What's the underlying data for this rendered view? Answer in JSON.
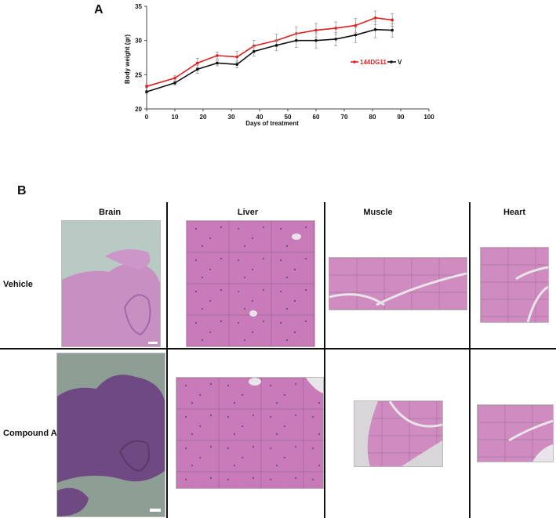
{
  "panels": {
    "a_label": "A",
    "b_label": "B"
  },
  "chart_data": {
    "type": "line",
    "xlabel": "Days of treatment",
    "ylabel": "Body weight (gr)",
    "xlim": [
      0,
      100
    ],
    "ylim": [
      20,
      35
    ],
    "xticks": [
      0,
      10,
      20,
      30,
      40,
      50,
      60,
      70,
      80,
      90,
      100
    ],
    "yticks": [
      20,
      25,
      30,
      35
    ],
    "legend_position": "right",
    "series": [
      {
        "name": "144DG11",
        "color": "#e02020",
        "x": [
          0,
          10,
          18,
          25,
          32,
          38,
          46,
          53,
          60,
          67,
          74,
          81,
          87
        ],
        "y": [
          23.3,
          24.5,
          26.7,
          27.8,
          27.6,
          29.2,
          30.0,
          31.0,
          31.5,
          31.8,
          32.2,
          33.3,
          33.0
        ],
        "err": [
          0.2,
          0.4,
          0.7,
          0.5,
          0.8,
          0.8,
          0.9,
          1.0,
          1.0,
          0.9,
          1.0,
          1.0,
          0.9
        ]
      },
      {
        "name": "V",
        "color": "#111111",
        "x": [
          0,
          10,
          18,
          25,
          32,
          38,
          46,
          53,
          60,
          67,
          74,
          81,
          87
        ],
        "y": [
          22.5,
          23.8,
          25.8,
          26.7,
          26.5,
          28.4,
          29.3,
          30.0,
          30.0,
          30.2,
          30.8,
          31.6,
          31.5
        ],
        "err": [
          0.2,
          0.3,
          0.6,
          0.4,
          0.5,
          0.7,
          0.8,
          1.0,
          1.1,
          1.0,
          1.1,
          1.2,
          1.0
        ]
      }
    ]
  },
  "histology": {
    "columns": [
      "Brain",
      "Liver",
      "Muscle",
      "Heart"
    ],
    "rows": [
      "Vehicle",
      "Compound A"
    ],
    "colors": {
      "he_pink": "#c873b8",
      "he_dark": "#7a4f8e",
      "slide_bg": "#b7c6c0",
      "white_space": "#e8e4ea"
    }
  }
}
